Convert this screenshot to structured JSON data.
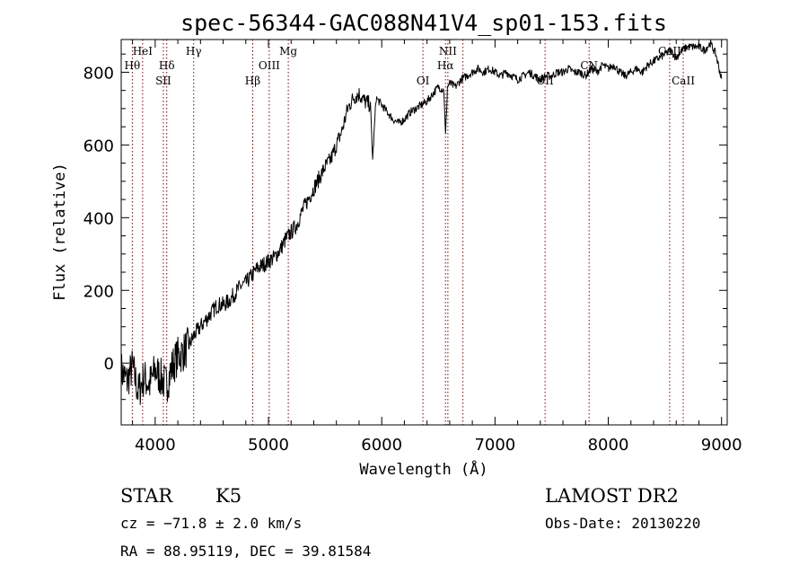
{
  "chart_data": {
    "type": "line",
    "title": "spec-56344-GAC088N41V4_sp01-153.fits",
    "xlabel": "Wavelength (Å)",
    "ylabel": "Flux (relative)",
    "xlim": [
      3700,
      9050
    ],
    "ylim": [
      -170,
      890
    ],
    "x_ticks": [
      4000,
      5000,
      6000,
      7000,
      8000,
      9000
    ],
    "x_tick_labels": [
      "4000",
      "5000",
      "6000",
      "7000",
      "8000",
      "9000"
    ],
    "y_ticks": [
      0,
      200,
      400,
      600,
      800
    ],
    "y_tick_labels": [
      "0",
      "200",
      "400",
      "600",
      "800"
    ],
    "grid": false,
    "series": [
      {
        "x": [
          3700,
          3750,
          3800,
          3850,
          3900,
          3950,
          4000,
          4050,
          4100,
          4150,
          4200,
          4250,
          4300,
          4350,
          4400,
          4450,
          4500,
          4550,
          4600,
          4650,
          4700,
          4750,
          4800,
          4850,
          4900,
          4950,
          5000,
          5050,
          5100,
          5150,
          5200,
          5250,
          5300,
          5350,
          5400,
          5450,
          5500,
          5550,
          5600,
          5650,
          5700,
          5750,
          5800,
          5850,
          5900,
          5920,
          5950,
          6000,
          6050,
          6100,
          6150,
          6200,
          6250,
          6300,
          6350,
          6400,
          6450,
          6500,
          6550,
          6563,
          6580,
          6600,
          6650,
          6700,
          6750,
          6800,
          6850,
          6900,
          6950,
          7000,
          7050,
          7100,
          7150,
          7200,
          7250,
          7300,
          7350,
          7400,
          7450,
          7500,
          7550,
          7600,
          7650,
          7700,
          7750,
          7800,
          7850,
          7900,
          7950,
          8000,
          8050,
          8100,
          8150,
          8200,
          8250,
          8300,
          8350,
          8400,
          8450,
          8500,
          8550,
          8600,
          8650,
          8700,
          8750,
          8800,
          8850,
          8900,
          8950,
          9000
        ],
        "y": [
          -20,
          -50,
          -10,
          -80,
          -40,
          -60,
          -20,
          -40,
          -60,
          -10,
          20,
          30,
          50,
          80,
          100,
          120,
          140,
          160,
          160,
          170,
          190,
          210,
          220,
          240,
          260,
          270,
          280,
          290,
          310,
          340,
          360,
          380,
          420,
          450,
          480,
          510,
          540,
          560,
          600,
          640,
          700,
          730,
          740,
          720,
          710,
          560,
          730,
          710,
          690,
          670,
          660,
          670,
          690,
          700,
          710,
          720,
          740,
          760,
          750,
          620,
          760,
          770,
          760,
          780,
          790,
          800,
          810,
          800,
          810,
          800,
          790,
          800,
          790,
          780,
          790,
          800,
          790,
          780,
          790,
          790,
          800,
          800,
          810,
          800,
          800,
          790,
          810,
          800,
          820,
          810,
          820,
          800,
          790,
          800,
          810,
          800,
          820,
          830,
          840,
          850,
          860,
          840,
          860,
          870,
          870,
          870,
          860,
          880,
          850,
          780
        ]
      }
    ],
    "lines": [
      {
        "x": 3798,
        "label": "Hθ",
        "row": 2
      },
      {
        "x": 3889,
        "label": "HeI",
        "row": 1
      },
      {
        "x": 4072,
        "label": "SII",
        "row": 3
      },
      {
        "x": 4102,
        "label": "Hδ",
        "row": 2
      },
      {
        "x": 4340,
        "label": "Hγ",
        "row": 1
      },
      {
        "x": 4861,
        "label": "Hβ",
        "row": 3
      },
      {
        "x": 5007,
        "label": "OIII",
        "row": 2
      },
      {
        "x": 5175,
        "label": "Mg",
        "row": 1
      },
      {
        "x": 6364,
        "label": "OI",
        "row": 3
      },
      {
        "x": 6563,
        "label": "Hα",
        "row": 2
      },
      {
        "x": 6584,
        "label": "NII",
        "row": 1
      },
      {
        "x": 6717,
        "label": "",
        "row": 0
      },
      {
        "x": 7442,
        "label": "OII",
        "row": 3
      },
      {
        "x": 7831,
        "label": "CN",
        "row": 2
      },
      {
        "x": 8542,
        "label": "CaII",
        "row": 1
      },
      {
        "x": 8662,
        "label": "CaII",
        "row": 3
      }
    ]
  },
  "info": {
    "class": "STAR",
    "subclass": "K5",
    "survey": "LAMOST DR2",
    "cz": "cz = −71.8 ± 2.0 km/s",
    "obs_date": "Obs-Date: 20130220",
    "radec": "RA =  88.95119, DEC =  39.81584"
  },
  "colors": {
    "spectrum": "#000000",
    "line_marker": "#8b0000"
  }
}
